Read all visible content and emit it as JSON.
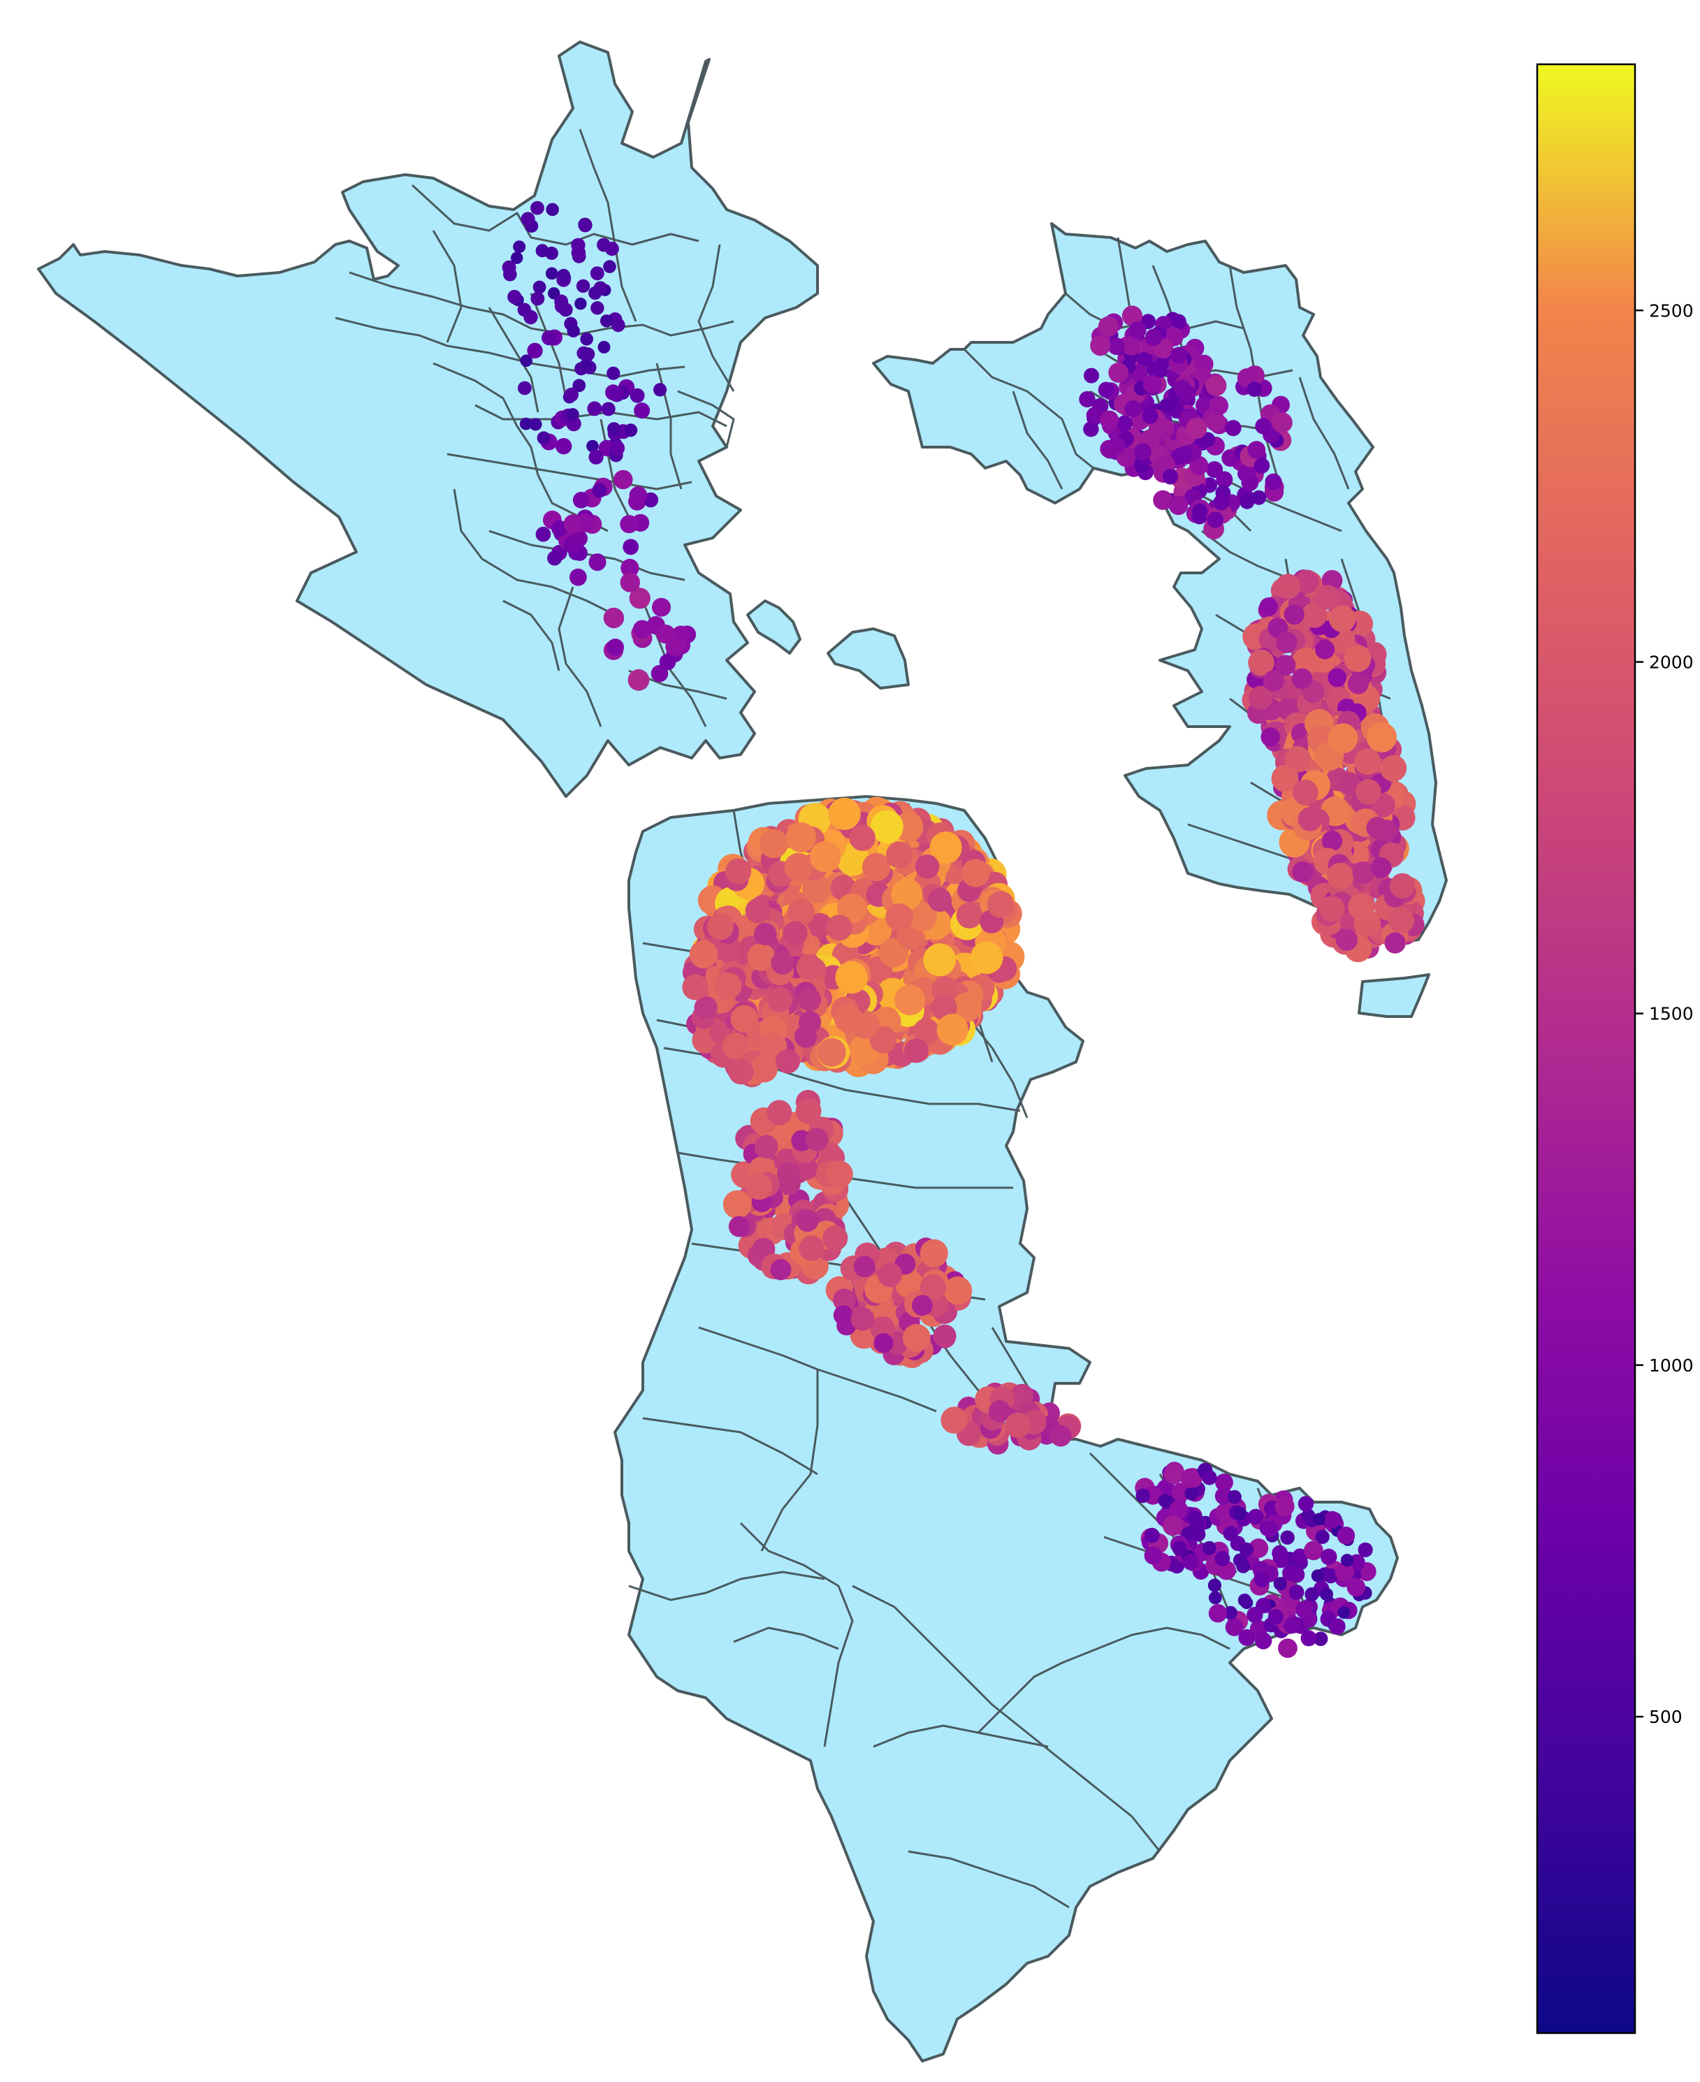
{
  "map": {
    "base_fill": "#aeeafc",
    "edge_color": "#4a5a5e",
    "colormap": "plasma",
    "value_range": [
      50,
      2850
    ],
    "legend_placement": "right"
  },
  "colorbar": {
    "ticks": [
      {
        "value": 500,
        "label": "500"
      },
      {
        "value": 1000,
        "label": "1000"
      },
      {
        "value": 1500,
        "label": "1500"
      },
      {
        "value": 2000,
        "label": "2000"
      },
      {
        "value": 2500,
        "label": "2500"
      }
    ]
  }
}
